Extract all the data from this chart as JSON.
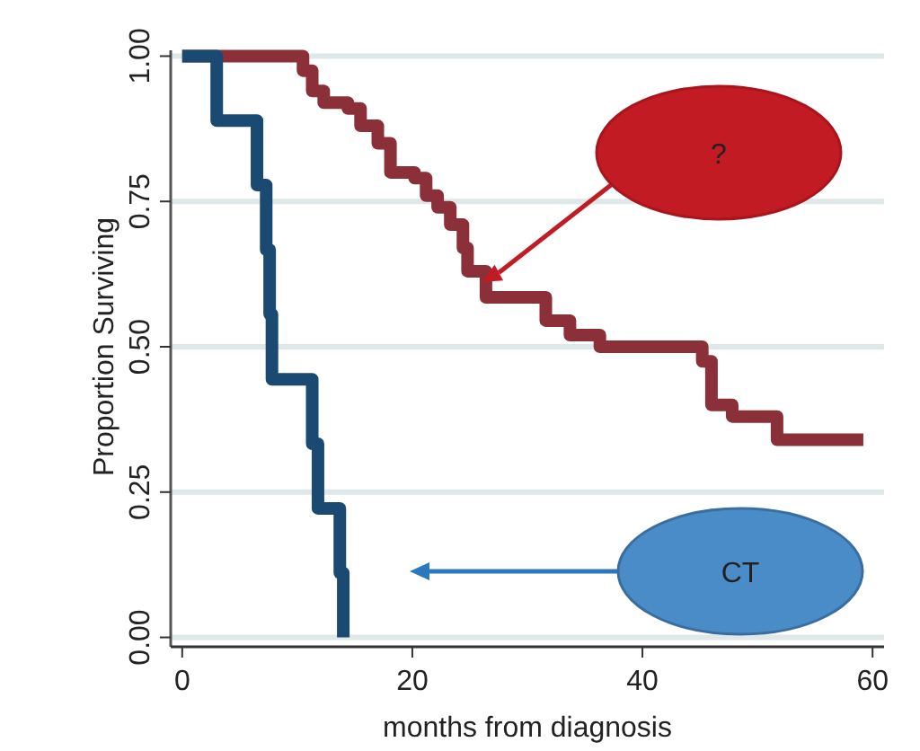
{
  "chart_data": {
    "type": "step",
    "xlabel": "months from diagnosis",
    "ylabel": "Proportion Surviving",
    "xlim": [
      -1,
      61
    ],
    "xticks": [
      0,
      20,
      40,
      60
    ],
    "ylim": [
      -0.01,
      1.01
    ],
    "yticks": [
      {
        "value": 0,
        "label": "0.00"
      },
      {
        "value": 0.25,
        "label": "0.25"
      },
      {
        "value": 0.5,
        "label": "0.50"
      },
      {
        "value": 0.75,
        "label": "0.75"
      },
      {
        "value": 1,
        "label": "1.00"
      }
    ],
    "grid": "y",
    "line_style": "solid",
    "marker": "none",
    "series": [
      {
        "color": "#8b3039",
        "x": [
          0,
          8.9,
          10.5,
          11.3,
          12.3,
          14.4,
          15.5,
          17,
          18.1,
          20.2,
          21.2,
          22.2,
          23.3,
          24.4,
          24.8,
          26.4,
          31.6,
          33.7,
          36.3,
          45.2,
          46,
          47.8,
          51.7,
          59.2
        ],
        "values": [
          1,
          1,
          0.975,
          0.94,
          0.92,
          0.91,
          0.88,
          0.85,
          0.8,
          0.79,
          0.76,
          0.74,
          0.71,
          0.67,
          0.63,
          0.585,
          0.545,
          0.52,
          0.5,
          0.475,
          0.4,
          0.38,
          0.34,
          0.34
        ]
      },
      {
        "color": "#1a4a72",
        "x": [
          0,
          3,
          6.5,
          7.3,
          7.6,
          7.8,
          11.3,
          11.8,
          13.7,
          14
        ],
        "values": [
          1,
          0.889,
          0.778,
          0.667,
          0.556,
          0.444,
          0.333,
          0.222,
          0.111,
          0
        ]
      }
    ],
    "annotations": [
      "?",
      "CT"
    ]
  }
}
